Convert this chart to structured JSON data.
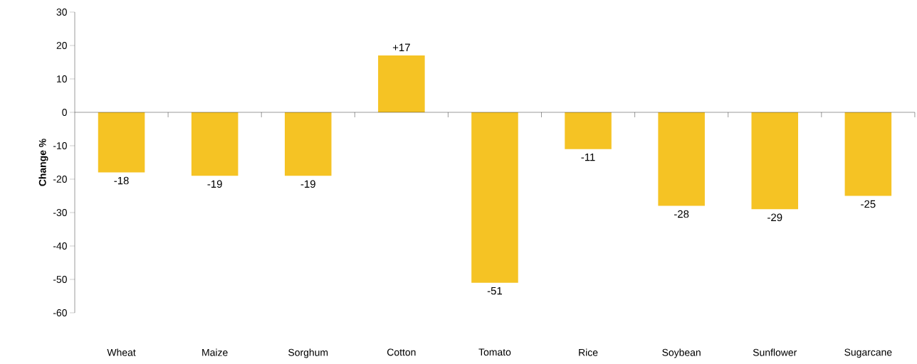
{
  "chart_data": {
    "type": "bar",
    "ylabel": "Change %",
    "categories": [
      "Wheat",
      "Maize",
      "Sorghum",
      "Cotton",
      "Tomato",
      "Rice",
      "Soybean",
      "Sunflower",
      "Sugarcane"
    ],
    "values": [
      -18,
      -19,
      -19,
      17,
      -51,
      -11,
      -28,
      -29,
      -25
    ],
    "value_labels": [
      "-18",
      "-19",
      "-19",
      "+17",
      "-51",
      "-11",
      "-28",
      "-29",
      "-25"
    ],
    "color": "#f5c324",
    "ylim": [
      -60,
      30
    ],
    "yticks": [
      -60,
      -50,
      -40,
      -30,
      -20,
      -10,
      0,
      10,
      20,
      30
    ]
  }
}
